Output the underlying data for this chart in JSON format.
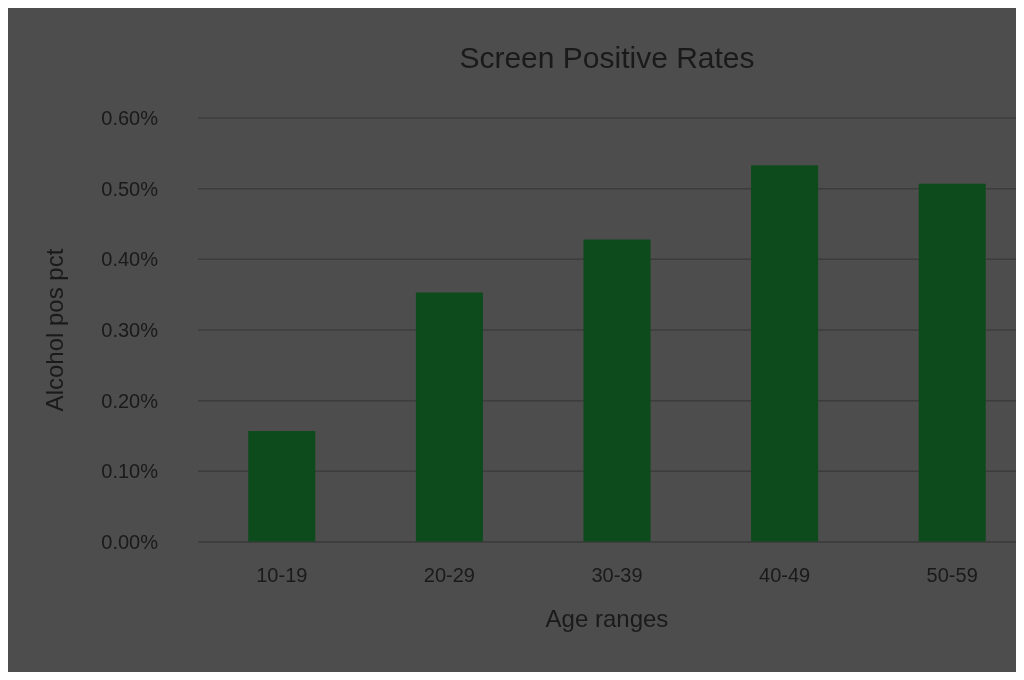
{
  "chart_data": {
    "type": "bar",
    "title": "Screen Positive Rates",
    "xlabel": "Age ranges",
    "ylabel": "Alcohol pos pct",
    "categories": [
      "10-19",
      "20-29",
      "30-39",
      "40-49",
      "50-59"
    ],
    "values": [
      0.157,
      0.353,
      0.428,
      0.533,
      0.507
    ],
    "color": "#0d4a1c",
    "ylim": [
      0,
      0.6
    ],
    "yticks": [
      {
        "value": 0,
        "label": "0.00%"
      },
      {
        "value": 0.1,
        "label": "0.10%"
      },
      {
        "value": 0.2,
        "label": "0.20%"
      },
      {
        "value": 0.3,
        "label": "0.30%"
      },
      {
        "value": 0.4,
        "label": "0.40%"
      },
      {
        "value": 0.5,
        "label": "0.50%"
      },
      {
        "value": 0.6,
        "label": "0.60%"
      }
    ],
    "grid": "y"
  }
}
